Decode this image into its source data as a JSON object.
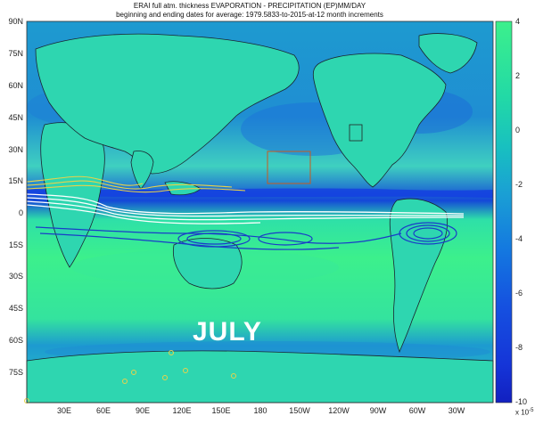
{
  "title": {
    "line1": "ERAI full atm. thickness  EVAPORATION - PRECIPITATION (EP)MM/DAY",
    "line2": "beginning and ending dates for average:  1979.5833-to-2015-at-12 month increments"
  },
  "lat_ticks": [
    "90N",
    "75N",
    "60N",
    "45N",
    "30N",
    "15N",
    "0",
    "15S",
    "30S",
    "45S",
    "60S",
    "75S"
  ],
  "lon_ticks": [
    "30E",
    "60E",
    "90E",
    "120E",
    "150E",
    "180",
    "150W",
    "120W",
    "90W",
    "60W",
    "30W"
  ],
  "colorbar": {
    "ticks": [
      "4",
      "2",
      "0",
      "-2",
      "-4",
      "-6",
      "-8",
      "-10"
    ],
    "exponent": "x 10",
    "exponent_power": "-5",
    "colors": [
      "#3cf08c",
      "#22d9a6",
      "#16b8c6",
      "#1493d8",
      "#1470e0",
      "#1550e0",
      "#1535d8",
      "#1220c0"
    ]
  },
  "annotation": {
    "month": "JULY"
  },
  "colors": {
    "ocean_base": "#2fd2c2",
    "land_base": "#2ee0a0",
    "dry_band": "#3cf08c",
    "wet_band": "#1440e0",
    "tracer_white": "#ffffff",
    "tracer_yellow": "#e8d24a",
    "tracer_blue": "#1a3cc8",
    "box": "#c85a1e"
  }
}
